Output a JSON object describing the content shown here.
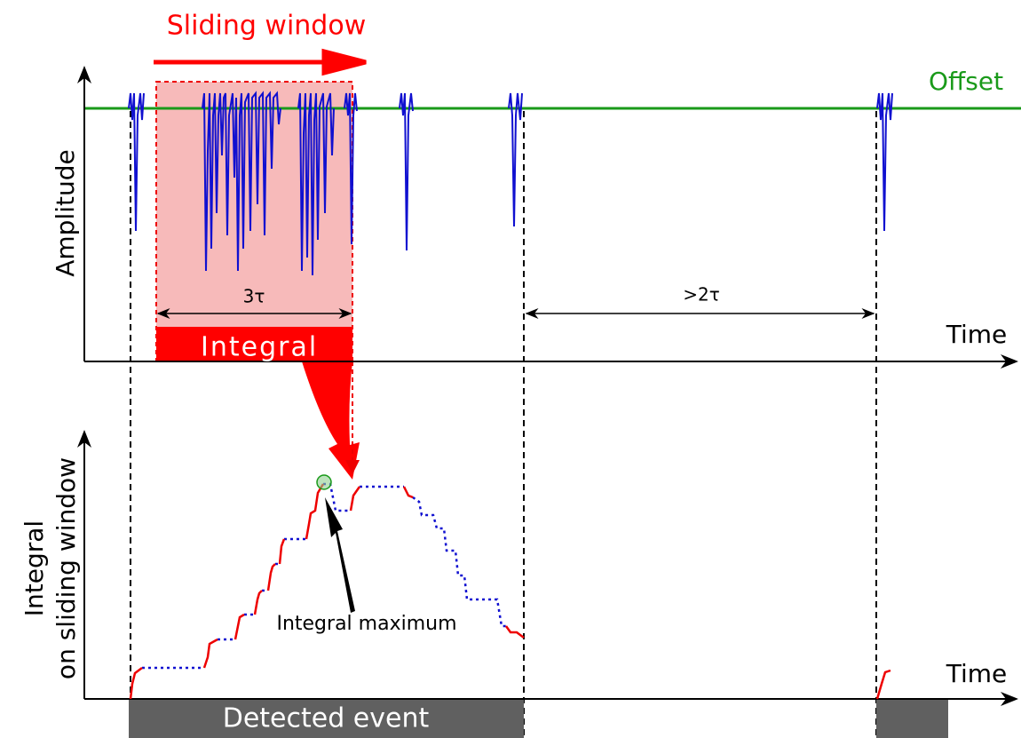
{
  "top": {
    "title": "Sliding window",
    "offset": "Offset",
    "y_label": "Amplitude",
    "x_label": "Time",
    "window_width": "3τ",
    "gap": ">2τ",
    "integral": "Integral"
  },
  "bottom": {
    "y_label_line1": "Integral",
    "y_label_line2": "on sliding window",
    "x_label": "Time",
    "maximum": "Integral maximum",
    "event": "Detected event"
  }
}
